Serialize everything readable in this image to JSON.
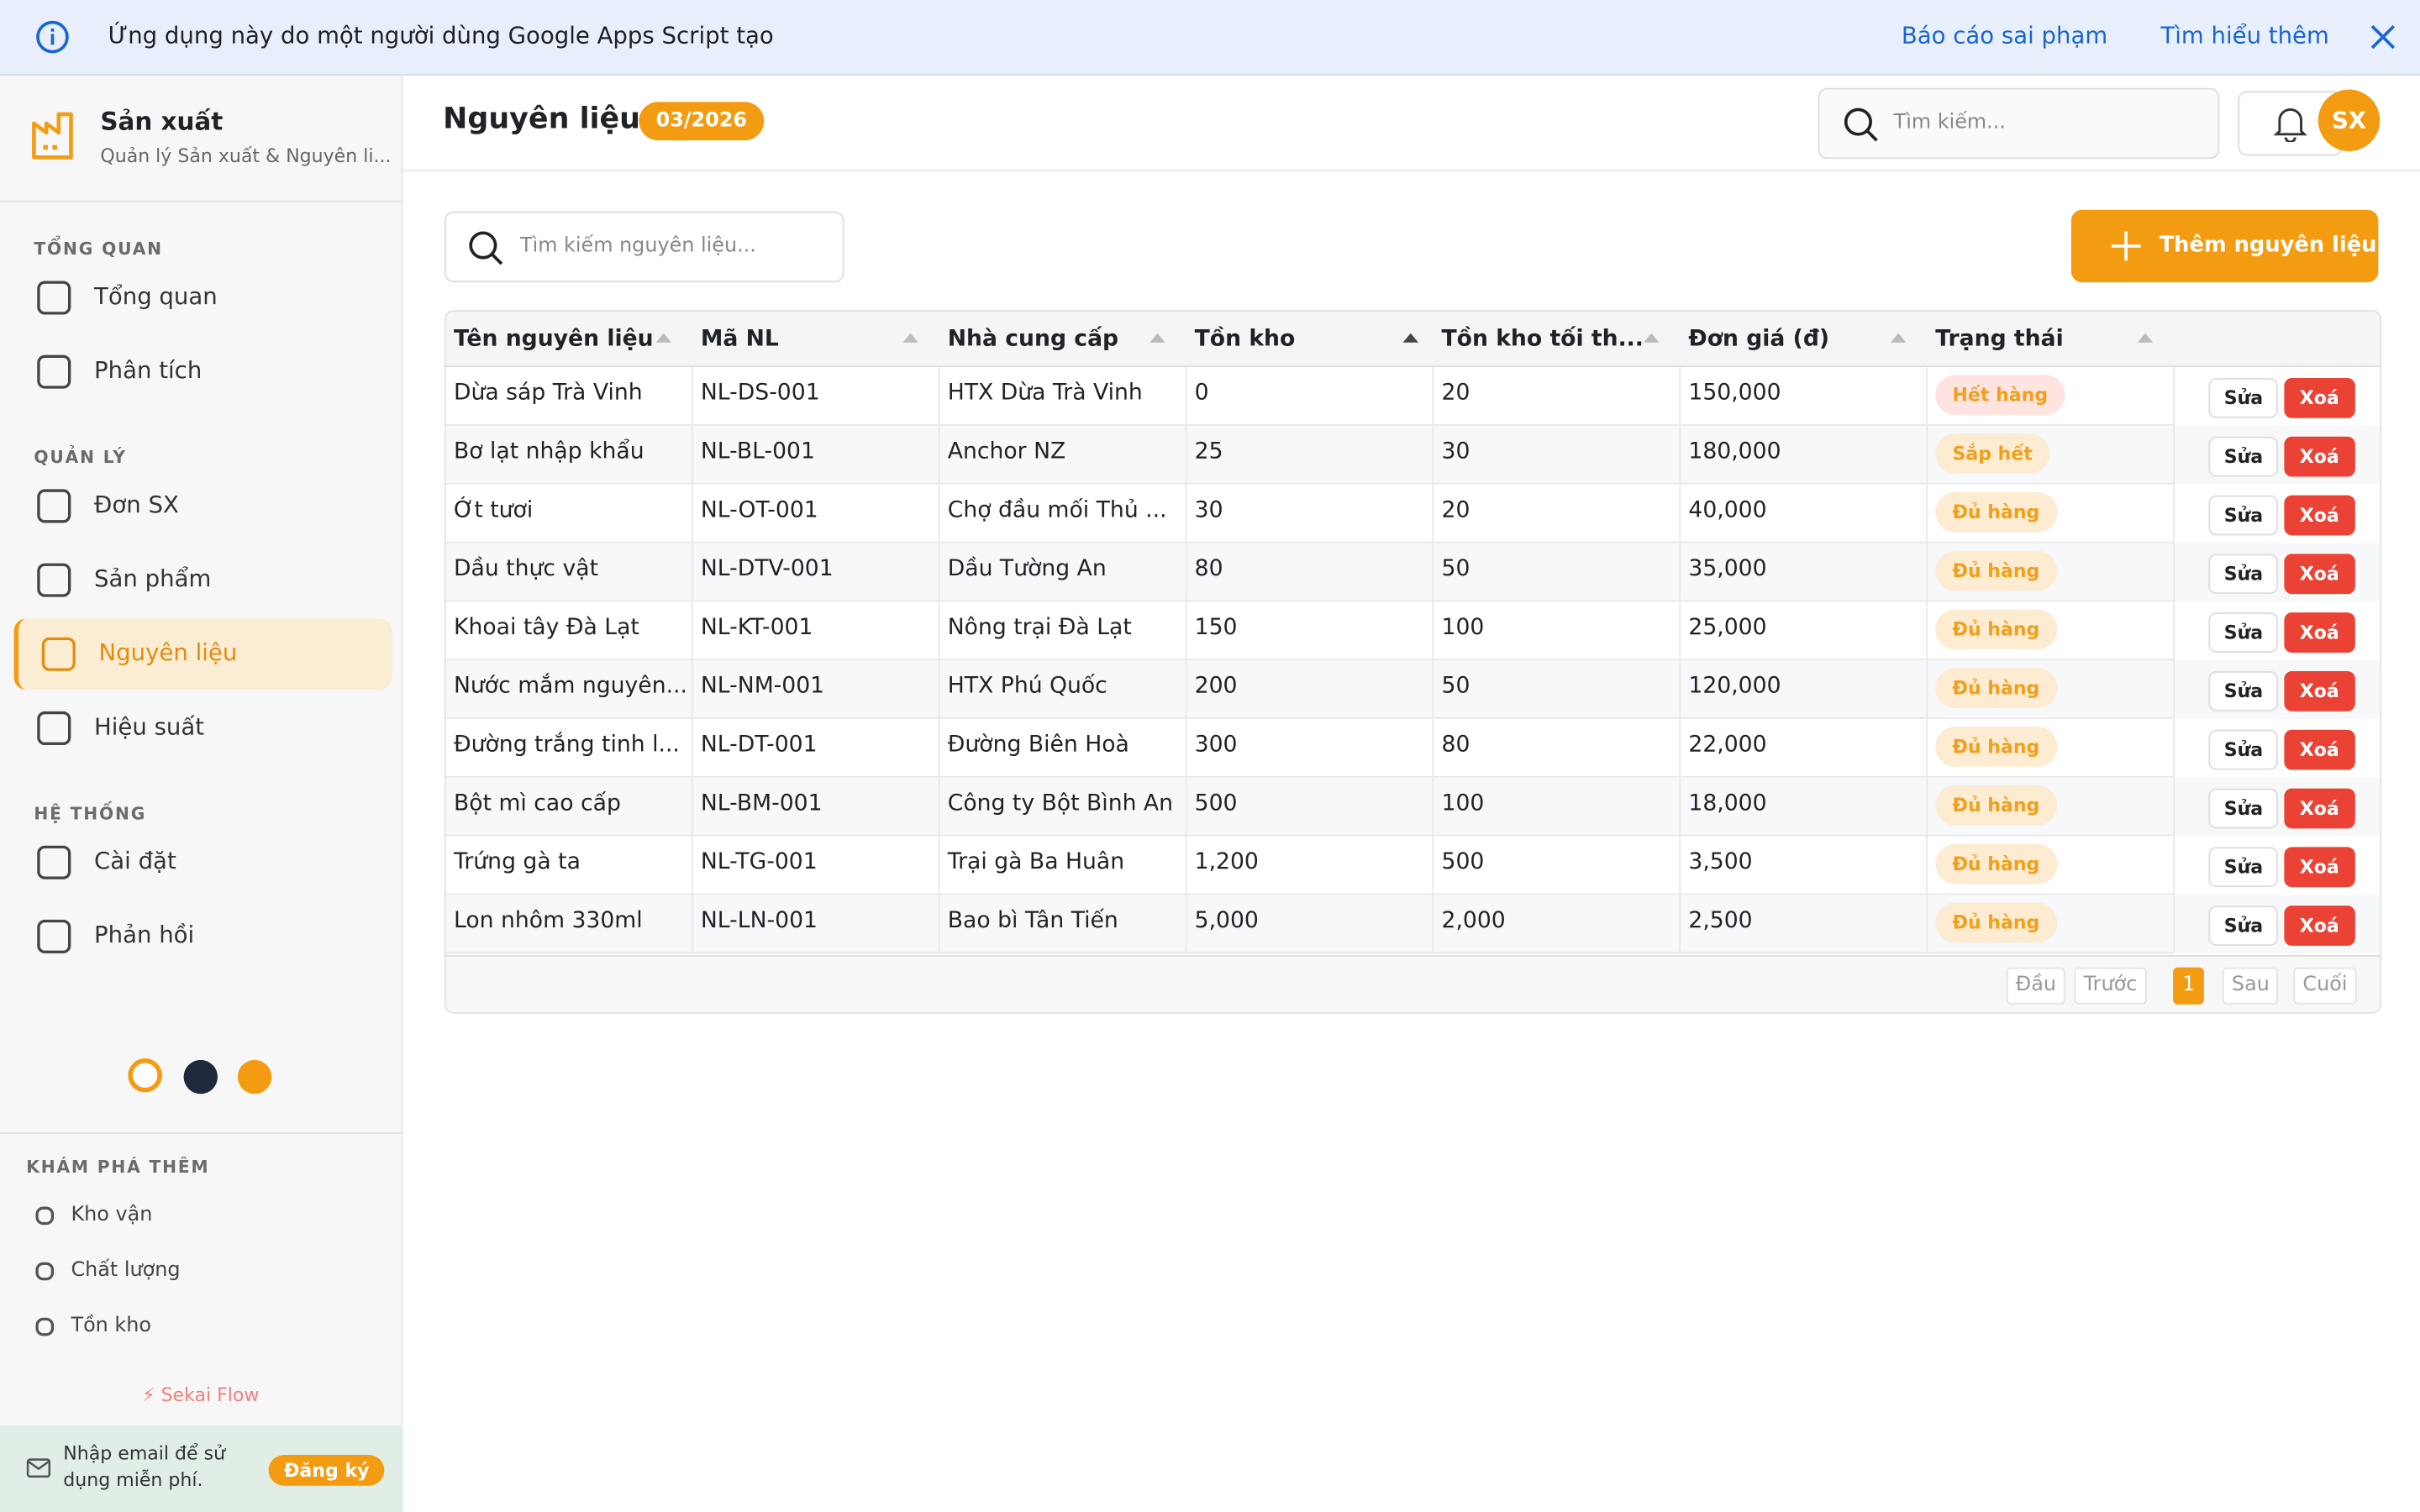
{
  "banner": {
    "text": "Ứng dụng này do một người dùng Google Apps Script tạo",
    "report": "Báo cáo sai phạm",
    "learn_more": "Tìm hiểu thêm"
  },
  "sidebar": {
    "brand": "Sản xuất",
    "subtitle": "Quản lý Sản xuất & Nguyên li...",
    "sections": [
      {
        "title": "TỔNG QUAN",
        "items": [
          "Tổng quan",
          "Phân tích"
        ]
      },
      {
        "title": "QUẢN LÝ",
        "items": [
          "Đơn SX",
          "Sản phẩm",
          "Nguyên liệu",
          "Hiệu suất"
        ]
      },
      {
        "title": "HỆ THỐNG",
        "items": [
          "Cài đặt",
          "Phản hồi"
        ]
      }
    ],
    "active_item": "Nguyên liệu",
    "explore": {
      "title": "KHÁM PHÁ THÊM",
      "items": [
        "Kho vận",
        "Chất lượng",
        "Tồn kho"
      ]
    },
    "footer": "Sekai Flow",
    "signup": {
      "text": "Nhập email để sử dụng miễn phí.",
      "button": "Đăng ký"
    }
  },
  "header": {
    "title": "Nguyên liệu",
    "badge": "03/2026",
    "search_placeholder": "Tìm kiếm...",
    "avatar": "SX"
  },
  "toolbar": {
    "search_placeholder": "Tìm kiếm nguyên liệu...",
    "add_button": "Thêm nguyên liệu"
  },
  "table": {
    "columns": [
      "Tên nguyên liệu",
      "Mã NL",
      "Nhà cung cấp",
      "Tồn kho",
      "Tồn kho tối th...",
      "Đơn giá (đ)",
      "Trạng thái"
    ],
    "rows": [
      [
        "Dừa sáp Trà Vinh",
        "NL-DS-001",
        "HTX Dừa Trà Vinh",
        "0",
        "20",
        "150,000",
        "Hết hàng"
      ],
      [
        "Bơ lạt nhập khẩu",
        "NL-BL-001",
        "Anchor NZ",
        "25",
        "30",
        "180,000",
        "Sắp hết"
      ],
      [
        "Ớt tươi",
        "NL-OT-001",
        "Chợ đầu mối Thủ ...",
        "30",
        "20",
        "40,000",
        "Đủ hàng"
      ],
      [
        "Dầu thực vật",
        "NL-DTV-001",
        "Dầu Tường An",
        "80",
        "50",
        "35,000",
        "Đủ hàng"
      ],
      [
        "Khoai tây Đà Lạt",
        "NL-KT-001",
        "Nông trại Đà Lạt",
        "150",
        "100",
        "25,000",
        "Đủ hàng"
      ],
      [
        "Nước mắm nguyên...",
        "NL-NM-001",
        "HTX Phú Quốc",
        "200",
        "50",
        "120,000",
        "Đủ hàng"
      ],
      [
        "Đường trắng tinh l...",
        "NL-DT-001",
        "Đường Biên Hoà",
        "300",
        "80",
        "22,000",
        "Đủ hàng"
      ],
      [
        "Bột mì cao cấp",
        "NL-BM-001",
        "Công ty Bột Bình An",
        "500",
        "100",
        "18,000",
        "Đủ hàng"
      ],
      [
        "Trứng gà ta",
        "NL-TG-001",
        "Trại gà Ba Huân",
        "1,200",
        "500",
        "3,500",
        "Đủ hàng"
      ],
      [
        "Lon nhôm 330ml",
        "NL-LN-001",
        "Bao bì Tân Tiến",
        "5,000",
        "2,000",
        "2,500",
        "Đủ hàng"
      ]
    ],
    "actions": [
      "Sửa",
      "Xoá"
    ],
    "pagination": [
      "Đầu",
      "Trước",
      "1",
      "Sau",
      "Cuối"
    ]
  }
}
